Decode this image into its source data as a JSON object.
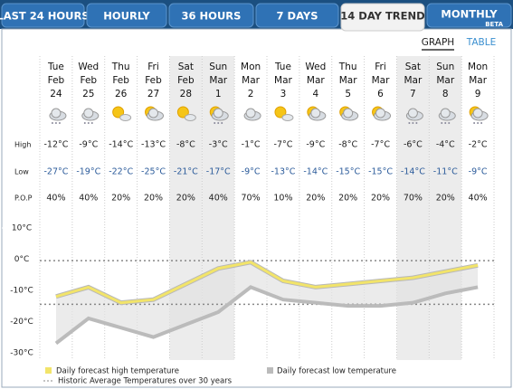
{
  "tabs": [
    "LAST 24 HOURS",
    "HOURLY",
    "36 HOURS",
    "7 DAYS",
    "14 DAY TREND",
    "MONTHLY"
  ],
  "tab_badge": "BETA",
  "view_toggle": [
    "GRAPH",
    "TABLE"
  ],
  "row_labels": {
    "high": "High",
    "low": "Low",
    "pop": "P.O.P"
  },
  "days": [
    {
      "weekday": "Tue",
      "month": "Feb",
      "day": "24"
    },
    {
      "weekday": "Wed",
      "month": "Feb",
      "day": "25"
    },
    {
      "weekday": "Thu",
      "month": "Feb",
      "day": "26"
    },
    {
      "weekday": "Fri",
      "month": "Feb",
      "day": "27"
    },
    {
      "weekday": "Sat",
      "month": "Feb",
      "day": "28"
    },
    {
      "weekday": "Sun",
      "month": "Mar",
      "day": "1"
    },
    {
      "weekday": "Mon",
      "month": "Mar",
      "day": "2"
    },
    {
      "weekday": "Tue",
      "month": "Mar",
      "day": "3"
    },
    {
      "weekday": "Wed",
      "month": "Mar",
      "day": "4"
    },
    {
      "weekday": "Thu",
      "month": "Mar",
      "day": "5"
    },
    {
      "weekday": "Fri",
      "month": "Mar",
      "day": "6"
    },
    {
      "weekday": "Sat",
      "month": "Mar",
      "day": "7"
    },
    {
      "weekday": "Sun",
      "month": "Mar",
      "day": "8"
    },
    {
      "weekday": "Mon",
      "month": "Mar",
      "day": "9"
    }
  ],
  "pop": [
    "40%",
    "40%",
    "20%",
    "20%",
    "20%",
    "40%",
    "70%",
    "10%",
    "20%",
    "20%",
    "20%",
    "70%",
    "20%",
    "40%"
  ],
  "chart_data": {
    "type": "line",
    "ylim": [
      -31.5,
      12
    ],
    "yticks": [
      {
        "value": 10,
        "label": "10°C"
      },
      {
        "value": 0,
        "label": "0°C"
      },
      {
        "value": -10,
        "label": "-10°C"
      },
      {
        "value": -20,
        "label": "-20°C"
      },
      {
        "value": -30,
        "label": "-30°C"
      }
    ],
    "series": [
      {
        "name": "Daily forecast high temperature",
        "color": "#f2e46a",
        "values": [
          -12,
          -9,
          -14,
          -13,
          -8,
          -3,
          -1,
          -7,
          -9,
          -8,
          -7,
          -6,
          -4,
          -2
        ],
        "value_labels": [
          "-12°C",
          "-9°C",
          "-14°C",
          "-13°C",
          "-8°C",
          "-3°C",
          "-1°C",
          "-7°C",
          "-9°C",
          "-8°C",
          "-7°C",
          "-6°C",
          "-4°C",
          "-2°C"
        ]
      },
      {
        "name": "Daily forecast low temperature",
        "color": "#bbbbbb",
        "values": [
          -27,
          -19,
          -22,
          -25,
          -21,
          -17,
          -9,
          -13,
          -14,
          -15,
          -15,
          -14,
          -11,
          -9
        ],
        "value_labels": [
          "-27°C",
          "-19°C",
          "-22°C",
          "-25°C",
          "-21°C",
          "-17°C",
          "-9°C",
          "-13°C",
          "-14°C",
          "-15°C",
          "-15°C",
          "-14°C",
          "-11°C",
          "-9°C"
        ]
      }
    ],
    "historic_average": {
      "name": "Historic Average Temperatures over 30 years",
      "values": [
        -0.5,
        -14.5
      ]
    }
  }
}
